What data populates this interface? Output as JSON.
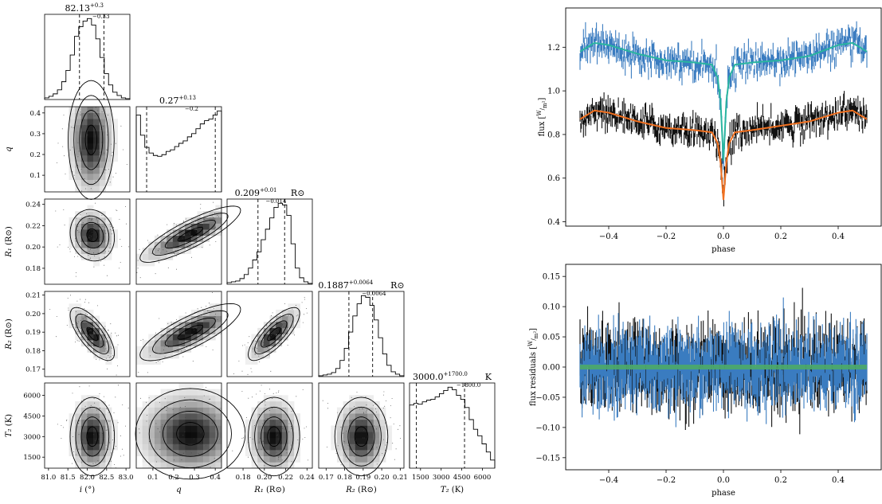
{
  "chart_data": [
    {
      "type": "corner",
      "params": [
        {
          "name": "i",
          "unit": "(°)",
          "xlabel_sym": "i",
          "xlabel_unit": " (°)",
          "ylabel_sym": "",
          "ylabel_unit": "",
          "title_base": "82.13",
          "title_sup": "+0.3",
          "title_sub": "−0.33",
          "title_unit": "",
          "range": [
            80.9,
            83.1
          ],
          "ticks": [
            81.0,
            81.5,
            82.0,
            82.5,
            83.0
          ],
          "tick_labels": [
            "81.0",
            "81.5",
            "82.0",
            "82.5",
            "83.0"
          ],
          "q16": 81.8,
          "q84": 82.43,
          "hist": [
            0.02,
            0.04,
            0.07,
            0.12,
            0.22,
            0.36,
            0.55,
            0.78,
            0.9,
            0.97,
            1.0,
            0.92,
            0.75,
            0.52,
            0.32,
            0.18,
            0.09,
            0.05,
            0.02,
            0.01
          ]
        },
        {
          "name": "q",
          "unit": "",
          "xlabel_sym": "q",
          "xlabel_unit": "",
          "ylabel_sym": "q",
          "ylabel_unit": "",
          "title_base": "0.27",
          "title_sup": "+0.13",
          "title_sub": "−0.2",
          "title_unit": "",
          "range": [
            0.02,
            0.43
          ],
          "ticks": [
            0.1,
            0.2,
            0.3,
            0.4
          ],
          "tick_labels": [
            "0.1",
            "0.2",
            "0.3",
            "0.4"
          ],
          "q16": 0.07,
          "q84": 0.4,
          "hist": [
            0.95,
            0.7,
            0.55,
            0.48,
            0.45,
            0.44,
            0.46,
            0.5,
            0.52,
            0.56,
            0.6,
            0.63,
            0.68,
            0.72,
            0.78,
            0.84,
            0.88,
            0.9,
            0.95,
            1.0
          ]
        },
        {
          "name": "R1",
          "unit": "(R⊙)",
          "xlabel_sym": "R₁",
          "xlabel_unit": " (R⊙)",
          "ylabel_sym": "R₁",
          "ylabel_unit": " (R⊙)",
          "title_base": "0.209",
          "title_sup": "+0.01",
          "title_sub": "−0.014",
          "title_unit": " R⊙",
          "range": [
            0.165,
            0.245
          ],
          "ticks": [
            0.18,
            0.2,
            0.22,
            0.24
          ],
          "tick_labels": [
            "0.18",
            "0.20",
            "0.22",
            "0.24"
          ],
          "q16": 0.194,
          "q84": 0.219,
          "hist": [
            0.02,
            0.03,
            0.04,
            0.07,
            0.12,
            0.2,
            0.3,
            0.4,
            0.55,
            0.68,
            0.82,
            0.95,
            1.0,
            0.98,
            0.85,
            0.5,
            0.2,
            0.08,
            0.03,
            0.01
          ]
        },
        {
          "name": "R2",
          "unit": "(R⊙)",
          "xlabel_sym": "R₂",
          "xlabel_unit": " (R⊙)",
          "ylabel_sym": "R₂",
          "ylabel_unit": " (R⊙)",
          "title_base": "0.1887",
          "title_sup": "+0.0064",
          "title_sub": "−0.0064",
          "title_unit": " R⊙",
          "range": [
            0.166,
            0.212
          ],
          "ticks": [
            0.17,
            0.18,
            0.19,
            0.2,
            0.21
          ],
          "tick_labels": [
            "0.17",
            "0.18",
            "0.19",
            "0.20",
            "0.21"
          ],
          "q16": 0.1823,
          "q84": 0.1951,
          "hist": [
            0.01,
            0.02,
            0.03,
            0.05,
            0.1,
            0.2,
            0.35,
            0.55,
            0.75,
            0.9,
            1.0,
            0.98,
            0.88,
            0.7,
            0.48,
            0.28,
            0.14,
            0.06,
            0.03,
            0.01
          ]
        },
        {
          "name": "T2",
          "unit": "(K)",
          "xlabel_sym": "T₂",
          "xlabel_unit": " (K)",
          "ylabel_sym": "T₂",
          "ylabel_unit": " (K)",
          "title_base": "3000.0",
          "title_sup": "+1700.0",
          "title_sub": "−1800.0",
          "title_unit": " K",
          "range": [
            700,
            6900
          ],
          "ticks": [
            1500,
            3000,
            4500,
            6000
          ],
          "tick_labels": [
            "1500",
            "3000",
            "4500",
            "6000"
          ],
          "q16": 1200,
          "q84": 4700,
          "hist": [
            0.78,
            0.8,
            0.79,
            0.82,
            0.84,
            0.85,
            0.88,
            0.92,
            0.96,
            1.0,
            0.97,
            0.9,
            0.85,
            0.75,
            0.6,
            0.48,
            0.4,
            0.3,
            0.2,
            0.1
          ]
        }
      ],
      "pairs": [
        {
          "row": 1,
          "col": 0,
          "cx": 82.1,
          "cy": 0.27,
          "sx": 0.27,
          "sy": 0.13,
          "rho": 0.0
        },
        {
          "row": 2,
          "col": 0,
          "cx": 82.13,
          "cy": 0.211,
          "sx": 0.26,
          "sy": 0.011,
          "rho": -0.1
        },
        {
          "row": 2,
          "col": 1,
          "cx": 0.28,
          "cy": 0.212,
          "sx": 0.11,
          "sy": 0.012,
          "rho": 0.85
        },
        {
          "row": 3,
          "col": 0,
          "cx": 82.13,
          "cy": 0.189,
          "sx": 0.26,
          "sy": 0.0065,
          "rho": -0.72
        },
        {
          "row": 3,
          "col": 1,
          "cx": 0.28,
          "cy": 0.19,
          "sx": 0.11,
          "sy": 0.007,
          "rho": 0.8
        },
        {
          "row": 3,
          "col": 2,
          "cx": 0.209,
          "cy": 0.189,
          "sx": 0.011,
          "sy": 0.0065,
          "rho": 0.78
        },
        {
          "row": 4,
          "col": 0,
          "cx": 82.13,
          "cy": 3000,
          "sx": 0.26,
          "sy": 1300,
          "rho": 0.0
        },
        {
          "row": 4,
          "col": 1,
          "cx": 0.28,
          "cy": 3200,
          "sx": 0.12,
          "sy": 1500,
          "rho": 0.0
        },
        {
          "row": 4,
          "col": 2,
          "cx": 0.209,
          "cy": 3000,
          "sx": 0.011,
          "sy": 1300,
          "rho": 0.0
        },
        {
          "row": 4,
          "col": 3,
          "cx": 0.189,
          "cy": 3000,
          "sx": 0.0065,
          "sy": 1300,
          "rho": 0.0
        }
      ],
      "contour_levels": [
        0.5,
        1.0,
        1.5,
        2.0
      ]
    },
    {
      "type": "line",
      "xlabel": "phase",
      "ylabel": "flux [W/m²]",
      "ylabel_main": "flux",
      "ylabel_num": "W",
      "ylabel_den": "m²",
      "xlim": [
        -0.55,
        0.55
      ],
      "ylim": [
        0.38,
        1.38
      ],
      "xticks": [
        -0.4,
        -0.2,
        0.0,
        0.2,
        0.4
      ],
      "xtick_labels": [
        "−0.4",
        "−0.2",
        "0.0",
        "0.2",
        "0.4"
      ],
      "yticks": [
        0.4,
        0.6,
        0.8,
        1.0,
        1.2
      ],
      "ytick_labels": [
        "0.4",
        "0.6",
        "0.8",
        "1.0",
        "1.2"
      ],
      "series": [
        {
          "kind": "data",
          "color": "#3a7cc0",
          "base": "upper",
          "noise": 0.03
        },
        {
          "kind": "model",
          "color": "#2ab5a0",
          "base": "upper"
        },
        {
          "kind": "data",
          "color": "#111111",
          "base": "lower",
          "noise": 0.03
        },
        {
          "kind": "model",
          "color": "#f07020",
          "base": "lower"
        }
      ],
      "model_upper": {
        "x": [
          -0.5,
          -0.45,
          -0.4,
          -0.3,
          -0.2,
          -0.1,
          -0.04,
          -0.02,
          -0.01,
          0.0,
          0.01,
          0.02,
          0.04,
          0.1,
          0.2,
          0.3,
          0.4,
          0.45,
          0.5
        ],
        "y": [
          1.18,
          1.22,
          1.21,
          1.17,
          1.14,
          1.13,
          1.12,
          1.06,
          0.95,
          0.68,
          0.95,
          1.06,
          1.12,
          1.13,
          1.14,
          1.16,
          1.21,
          1.22,
          1.18
        ]
      },
      "model_lower": {
        "x": [
          -0.5,
          -0.45,
          -0.4,
          -0.3,
          -0.2,
          -0.1,
          -0.04,
          -0.02,
          -0.01,
          0.0,
          0.01,
          0.02,
          0.04,
          0.1,
          0.2,
          0.3,
          0.4,
          0.45,
          0.5
        ],
        "y": [
          0.87,
          0.91,
          0.9,
          0.86,
          0.83,
          0.82,
          0.81,
          0.76,
          0.67,
          0.5,
          0.67,
          0.76,
          0.81,
          0.82,
          0.84,
          0.86,
          0.9,
          0.91,
          0.87
        ]
      }
    },
    {
      "type": "line",
      "xlabel": "phase",
      "ylabel": "flux residuals [W/m²]",
      "ylabel_main": "flux residuals",
      "ylabel_num": "W",
      "ylabel_den": "m²",
      "xlim": [
        -0.55,
        0.55
      ],
      "ylim": [
        -0.17,
        0.17
      ],
      "xticks": [
        -0.4,
        -0.2,
        0.0,
        0.2,
        0.4
      ],
      "xtick_labels": [
        "−0.4",
        "−0.2",
        "0.0",
        "0.2",
        "0.4"
      ],
      "yticks": [
        -0.15,
        -0.1,
        -0.05,
        0.0,
        0.05,
        0.1,
        0.15
      ],
      "ytick_labels": [
        "−0.15",
        "−0.10",
        "−0.05",
        "0.00",
        "0.05",
        "0.10",
        "0.15"
      ],
      "series": [
        {
          "kind": "residual",
          "color": "#111111",
          "sigma": 0.045
        },
        {
          "kind": "residual",
          "color": "#3a7cc0",
          "sigma": 0.04
        },
        {
          "kind": "zero",
          "color": "#4caa68"
        }
      ]
    }
  ]
}
